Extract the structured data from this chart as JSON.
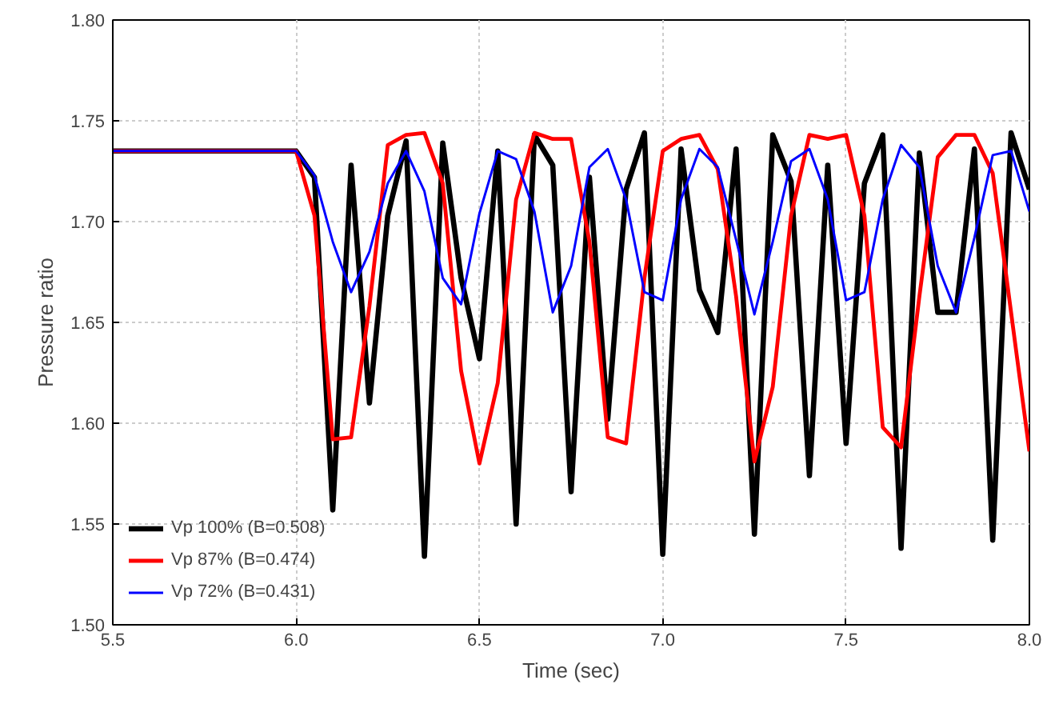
{
  "chart_data": {
    "type": "line",
    "xlabel": "Time (sec)",
    "ylabel": "Pressure ratio",
    "x": [
      5.5,
      6.0,
      6.05,
      6.1,
      6.15,
      6.2,
      6.25,
      6.3,
      6.35,
      6.4,
      6.45,
      6.5,
      6.55,
      6.6,
      6.65,
      6.7,
      6.75,
      6.8,
      6.85,
      6.9,
      6.95,
      7.0,
      7.05,
      7.1,
      7.15,
      7.2,
      7.25,
      7.3,
      7.35,
      7.4,
      7.45,
      7.5,
      7.55,
      7.6,
      7.65,
      7.7,
      7.75,
      7.8,
      7.85,
      7.9,
      7.95,
      8.0
    ],
    "series": [
      {
        "name": "Vp 100% (B=0.508)",
        "color": "#000000",
        "values": [
          1.735,
          1.735,
          1.722,
          1.557,
          1.728,
          1.61,
          1.703,
          1.74,
          1.534,
          1.739,
          1.672,
          1.632,
          1.735,
          1.55,
          1.743,
          1.728,
          1.566,
          1.722,
          1.602,
          1.716,
          1.744,
          1.535,
          1.736,
          1.666,
          1.645,
          1.736,
          1.545,
          1.743,
          1.72,
          1.574,
          1.728,
          1.59,
          1.719,
          1.743,
          1.538,
          1.734,
          1.655,
          1.655,
          1.736,
          1.542,
          1.744,
          1.716
        ]
      },
      {
        "name": "Vp 87% (B=0.474)",
        "color": "#ff0000",
        "values": [
          1.735,
          1.735,
          1.703,
          1.592,
          1.593,
          1.658,
          1.738,
          1.743,
          1.744,
          1.719,
          1.626,
          1.58,
          1.62,
          1.711,
          1.744,
          1.741,
          1.741,
          1.69,
          1.593,
          1.59,
          1.672,
          1.735,
          1.741,
          1.743,
          1.726,
          1.663,
          1.581,
          1.618,
          1.703,
          1.743,
          1.741,
          1.743,
          1.703,
          1.598,
          1.588,
          1.663,
          1.732,
          1.743,
          1.743,
          1.724,
          1.655,
          1.586
        ]
      },
      {
        "name": "Vp 72% (B=0.431)",
        "color": "#0000ff",
        "values": [
          1.735,
          1.735,
          1.723,
          1.69,
          1.665,
          1.685,
          1.719,
          1.735,
          1.715,
          1.672,
          1.659,
          1.704,
          1.735,
          1.731,
          1.705,
          1.655,
          1.678,
          1.727,
          1.736,
          1.711,
          1.665,
          1.661,
          1.711,
          1.736,
          1.727,
          1.691,
          1.654,
          1.69,
          1.73,
          1.736,
          1.711,
          1.661,
          1.665,
          1.711,
          1.738,
          1.727,
          1.678,
          1.655,
          1.692,
          1.733,
          1.735,
          1.705
        ]
      }
    ],
    "xlim": [
      5.5,
      8.0
    ],
    "xticks": [
      {
        "value": 5.5,
        "label": "5.5"
      },
      {
        "value": 6.0,
        "label": "6.0"
      },
      {
        "value": 6.5,
        "label": "6.5"
      },
      {
        "value": 7.0,
        "label": "7.0"
      },
      {
        "value": 7.5,
        "label": "7.5"
      },
      {
        "value": 8.0,
        "label": "8.0"
      }
    ],
    "ylim": [
      1.5,
      1.8
    ],
    "yticks": [
      {
        "value": 1.5,
        "label": "1.50"
      },
      {
        "value": 1.55,
        "label": "1.55"
      },
      {
        "value": 1.6,
        "label": "1.60"
      },
      {
        "value": 1.65,
        "label": "1.65"
      },
      {
        "value": 1.7,
        "label": "1.70"
      },
      {
        "value": 1.75,
        "label": "1.75"
      },
      {
        "value": 1.8,
        "label": "1.80"
      }
    ],
    "grid": true,
    "legend": "bottom left",
    "marker": "none",
    "line_style": "solid"
  }
}
